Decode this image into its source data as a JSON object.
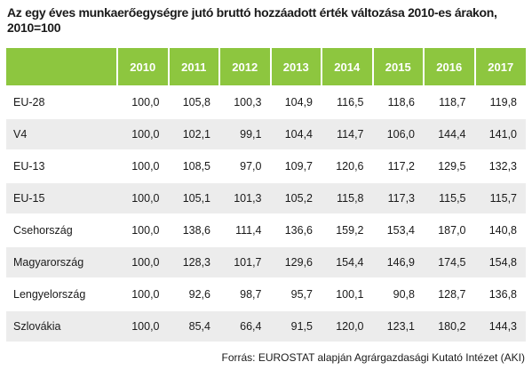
{
  "title": "Az egy éves munkaerőegységre jutó bruttó hozzáadott érték változása 2010-es árakon, 2010=100",
  "columns": [
    "",
    "2010",
    "2011",
    "2012",
    "2013",
    "2014",
    "2015",
    "2016",
    "2017"
  ],
  "rows": [
    {
      "label": "EU-28",
      "values": [
        "100,0",
        "105,8",
        "100,3",
        "104,9",
        "116,5",
        "118,6",
        "118,7",
        "119,8"
      ]
    },
    {
      "label": "V4",
      "values": [
        "100,0",
        "102,1",
        "99,1",
        "104,4",
        "114,7",
        "106,0",
        "144,4",
        "141,0"
      ]
    },
    {
      "label": "EU-13",
      "values": [
        "100,0",
        "108,5",
        "97,0",
        "109,7",
        "120,6",
        "117,2",
        "129,5",
        "132,3"
      ]
    },
    {
      "label": "EU-15",
      "values": [
        "100,0",
        "105,1",
        "101,3",
        "105,2",
        "115,8",
        "117,3",
        "115,5",
        "115,7"
      ]
    },
    {
      "label": "Csehország",
      "values": [
        "100,0",
        "138,6",
        "111,4",
        "136,6",
        "159,2",
        "153,4",
        "187,0",
        "140,8"
      ]
    },
    {
      "label": "Magyarország",
      "values": [
        "100,0",
        "128,3",
        "101,7",
        "129,6",
        "154,4",
        "146,9",
        "174,5",
        "154,8"
      ]
    },
    {
      "label": "Lengyelország",
      "values": [
        "100,0",
        "92,6",
        "98,7",
        "95,7",
        "100,1",
        "90,8",
        "128,7",
        "136,8"
      ]
    },
    {
      "label": "Szlovákia",
      "values": [
        "100,0",
        "85,4",
        "66,4",
        "91,5",
        "120,0",
        "123,1",
        "180,2",
        "144,3"
      ]
    }
  ],
  "source": "Forrás: EUROSTAT alapján Agrárgazdasági Kutató Intézet (AKI)",
  "colors": {
    "header_bg": "#8dc63f",
    "stripe_bg": "#ececec"
  }
}
